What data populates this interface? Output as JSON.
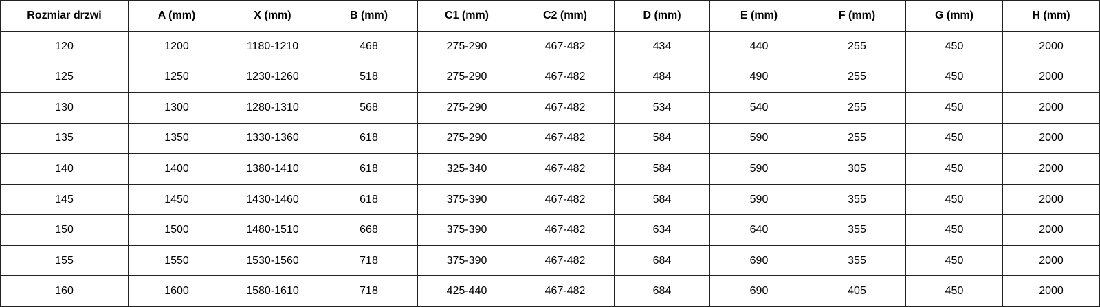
{
  "headers": [
    "Rozmiar drzwi",
    "A (mm)",
    "X (mm)",
    "B (mm)",
    "C1 (mm)",
    "C2 (mm)",
    "D (mm)",
    "E (mm)",
    "F (mm)",
    "G (mm)",
    "H (mm)"
  ],
  "rows": [
    [
      "120",
      "1200",
      "1180-1210",
      "468",
      "275-290",
      "467-482",
      "434",
      "440",
      "255",
      "450",
      "2000"
    ],
    [
      "125",
      "1250",
      "1230-1260",
      "518",
      "275-290",
      "467-482",
      "484",
      "490",
      "255",
      "450",
      "2000"
    ],
    [
      "130",
      "1300",
      "1280-1310",
      "568",
      "275-290",
      "467-482",
      "534",
      "540",
      "255",
      "450",
      "2000"
    ],
    [
      "135",
      "1350",
      "1330-1360",
      "618",
      "275-290",
      "467-482",
      "584",
      "590",
      "255",
      "450",
      "2000"
    ],
    [
      "140",
      "1400",
      "1380-1410",
      "618",
      "325-340",
      "467-482",
      "584",
      "590",
      "305",
      "450",
      "2000"
    ],
    [
      "145",
      "1450",
      "1430-1460",
      "618",
      "375-390",
      "467-482",
      "584",
      "590",
      "355",
      "450",
      "2000"
    ],
    [
      "150",
      "1500",
      "1480-1510",
      "668",
      "375-390",
      "467-482",
      "634",
      "640",
      "355",
      "450",
      "2000"
    ],
    [
      "155",
      "1550",
      "1530-1560",
      "718",
      "375-390",
      "467-482",
      "684",
      "690",
      "355",
      "450",
      "2000"
    ],
    [
      "160",
      "1600",
      "1580-1610",
      "718",
      "425-440",
      "467-482",
      "684",
      "690",
      "405",
      "450",
      "2000"
    ]
  ]
}
